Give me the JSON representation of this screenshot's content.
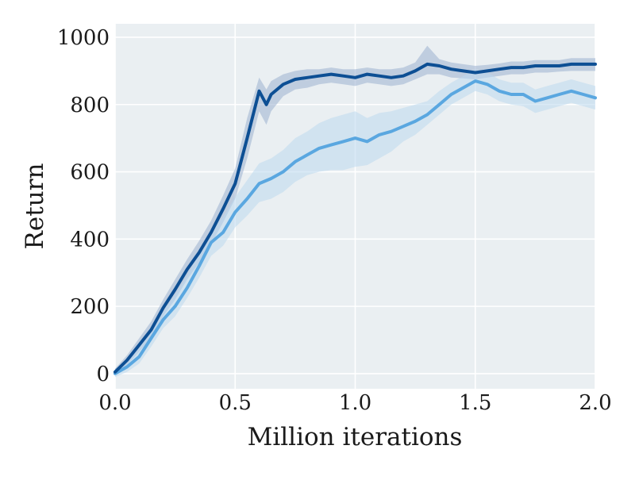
{
  "chart_data": {
    "type": "line",
    "xlabel": "Million iterations",
    "ylabel": "Return",
    "xlim": [
      0.0,
      2.0
    ],
    "ylim": [
      -45,
      1040
    ],
    "x_ticks": [
      0.0,
      0.5,
      1.0,
      1.5,
      2.0
    ],
    "x_tick_labels": [
      "0.0",
      "0.5",
      "1.0",
      "1.5",
      "2.0"
    ],
    "y_ticks": [
      0,
      200,
      400,
      600,
      800,
      1000
    ],
    "y_tick_labels": [
      "0",
      "200",
      "400",
      "600",
      "800",
      "1000"
    ],
    "grid": true,
    "colors": {
      "background": "#eaeff2",
      "grid": "#ffffff"
    },
    "series": [
      {
        "color": "#0d4f94",
        "band_color": "#9ab0cf",
        "x": [
          0.0,
          0.05,
          0.1,
          0.15,
          0.2,
          0.25,
          0.3,
          0.35,
          0.4,
          0.45,
          0.5,
          0.55,
          0.6,
          0.63,
          0.65,
          0.7,
          0.75,
          0.8,
          0.85,
          0.9,
          0.95,
          1.0,
          1.05,
          1.1,
          1.15,
          1.2,
          1.25,
          1.3,
          1.35,
          1.4,
          1.45,
          1.5,
          1.55,
          1.6,
          1.65,
          1.7,
          1.75,
          1.8,
          1.85,
          1.9,
          1.95,
          2.0
        ],
        "y": [
          5,
          40,
          85,
          130,
          195,
          250,
          310,
          360,
          420,
          490,
          565,
          700,
          840,
          800,
          830,
          860,
          875,
          880,
          885,
          890,
          885,
          880,
          890,
          885,
          880,
          885,
          900,
          920,
          915,
          905,
          900,
          895,
          900,
          905,
          910,
          910,
          915,
          915,
          915,
          920,
          920,
          920
        ],
        "lower": [
          0,
          25,
          65,
          105,
          170,
          220,
          280,
          330,
          385,
          450,
          520,
          640,
          780,
          740,
          780,
          825,
          845,
          850,
          860,
          865,
          860,
          855,
          865,
          860,
          855,
          860,
          875,
          890,
          890,
          880,
          878,
          875,
          880,
          885,
          890,
          890,
          895,
          895,
          898,
          900,
          900,
          900
        ],
        "upper": [
          15,
          55,
          105,
          155,
          220,
          280,
          340,
          395,
          455,
          530,
          610,
          760,
          880,
          845,
          870,
          890,
          900,
          905,
          905,
          910,
          905,
          905,
          910,
          905,
          905,
          910,
          925,
          975,
          935,
          925,
          920,
          915,
          918,
          922,
          928,
          928,
          932,
          932,
          932,
          938,
          938,
          938
        ]
      },
      {
        "color": "#5aa7e0",
        "band_color": "#bcd9ef",
        "x": [
          0.0,
          0.05,
          0.1,
          0.15,
          0.2,
          0.25,
          0.3,
          0.35,
          0.4,
          0.45,
          0.5,
          0.55,
          0.6,
          0.65,
          0.7,
          0.75,
          0.8,
          0.85,
          0.9,
          0.95,
          1.0,
          1.05,
          1.1,
          1.15,
          1.2,
          1.25,
          1.3,
          1.35,
          1.4,
          1.45,
          1.5,
          1.55,
          1.6,
          1.65,
          1.7,
          1.75,
          1.8,
          1.85,
          1.9,
          1.95,
          2.0
        ],
        "y": [
          0,
          20,
          50,
          105,
          160,
          200,
          255,
          320,
          390,
          420,
          480,
          520,
          565,
          580,
          600,
          630,
          650,
          670,
          680,
          690,
          700,
          690,
          710,
          720,
          735,
          750,
          770,
          800,
          830,
          850,
          870,
          860,
          840,
          830,
          830,
          810,
          820,
          830,
          840,
          830,
          820
        ],
        "lower": [
          -10,
          5,
          30,
          80,
          135,
          170,
          225,
          285,
          350,
          380,
          435,
          470,
          510,
          520,
          540,
          570,
          590,
          600,
          605,
          605,
          615,
          620,
          640,
          660,
          690,
          710,
          740,
          770,
          800,
          820,
          840,
          830,
          810,
          800,
          795,
          775,
          785,
          795,
          805,
          795,
          785
        ],
        "upper": [
          10,
          35,
          75,
          130,
          185,
          235,
          290,
          360,
          430,
          465,
          525,
          575,
          625,
          640,
          665,
          700,
          720,
          745,
          760,
          770,
          780,
          760,
          775,
          780,
          790,
          800,
          810,
          840,
          865,
          885,
          905,
          895,
          875,
          865,
          865,
          845,
          855,
          865,
          875,
          865,
          855
        ]
      }
    ]
  }
}
